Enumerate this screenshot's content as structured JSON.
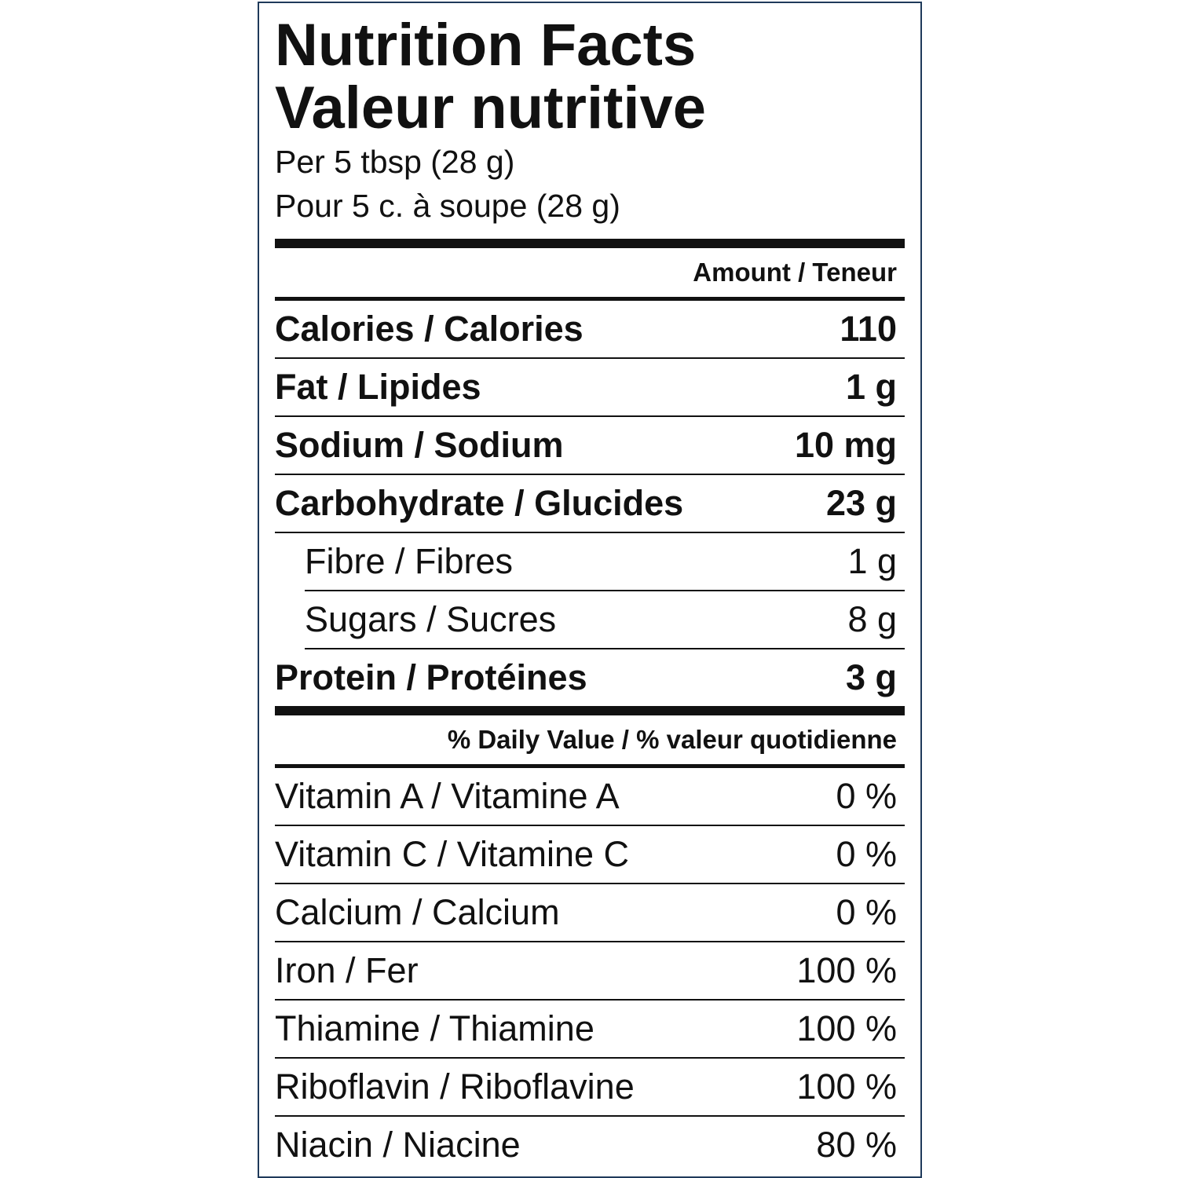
{
  "header": {
    "title_en": "Nutrition Facts",
    "title_fr": "Valeur nutritive",
    "serving_en": "Per 5 tbsp (28 g)",
    "serving_fr": "Pour 5 c. à soupe (28 g)"
  },
  "amount_header": "Amount / Teneur",
  "nutrients": [
    {
      "label": "Calories / Calories",
      "value": "110",
      "bold": true,
      "indent": false
    },
    {
      "label": "Fat / Lipides",
      "value": "1 g",
      "bold": true,
      "indent": false
    },
    {
      "label": "Sodium / Sodium",
      "value": "10 mg",
      "bold": true,
      "indent": false
    },
    {
      "label": "Carbohydrate / Glucides",
      "value": "23 g",
      "bold": true,
      "indent": false
    },
    {
      "label": "Fibre / Fibres",
      "value": "1 g",
      "bold": false,
      "indent": true
    },
    {
      "label": "Sugars / Sucres",
      "value": "8 g",
      "bold": false,
      "indent": true
    },
    {
      "label": "Protein / Protéines",
      "value": "3 g",
      "bold": true,
      "indent": false
    }
  ],
  "dv_header": "% Daily Value / % valeur quotidienne",
  "vitamins": [
    {
      "label": "Vitamin A / Vitamine A",
      "value": "0 %"
    },
    {
      "label": "Vitamin C / Vitamine C",
      "value": "0 %"
    },
    {
      "label": "Calcium / Calcium",
      "value": "0 %"
    },
    {
      "label": "Iron / Fer",
      "value": "100 %"
    },
    {
      "label": "Thiamine / Thiamine",
      "value": "100 %"
    },
    {
      "label": "Riboflavin / Riboflavine",
      "value": "100 %"
    },
    {
      "label": "Niacin / Niacine",
      "value": "80 %"
    }
  ]
}
